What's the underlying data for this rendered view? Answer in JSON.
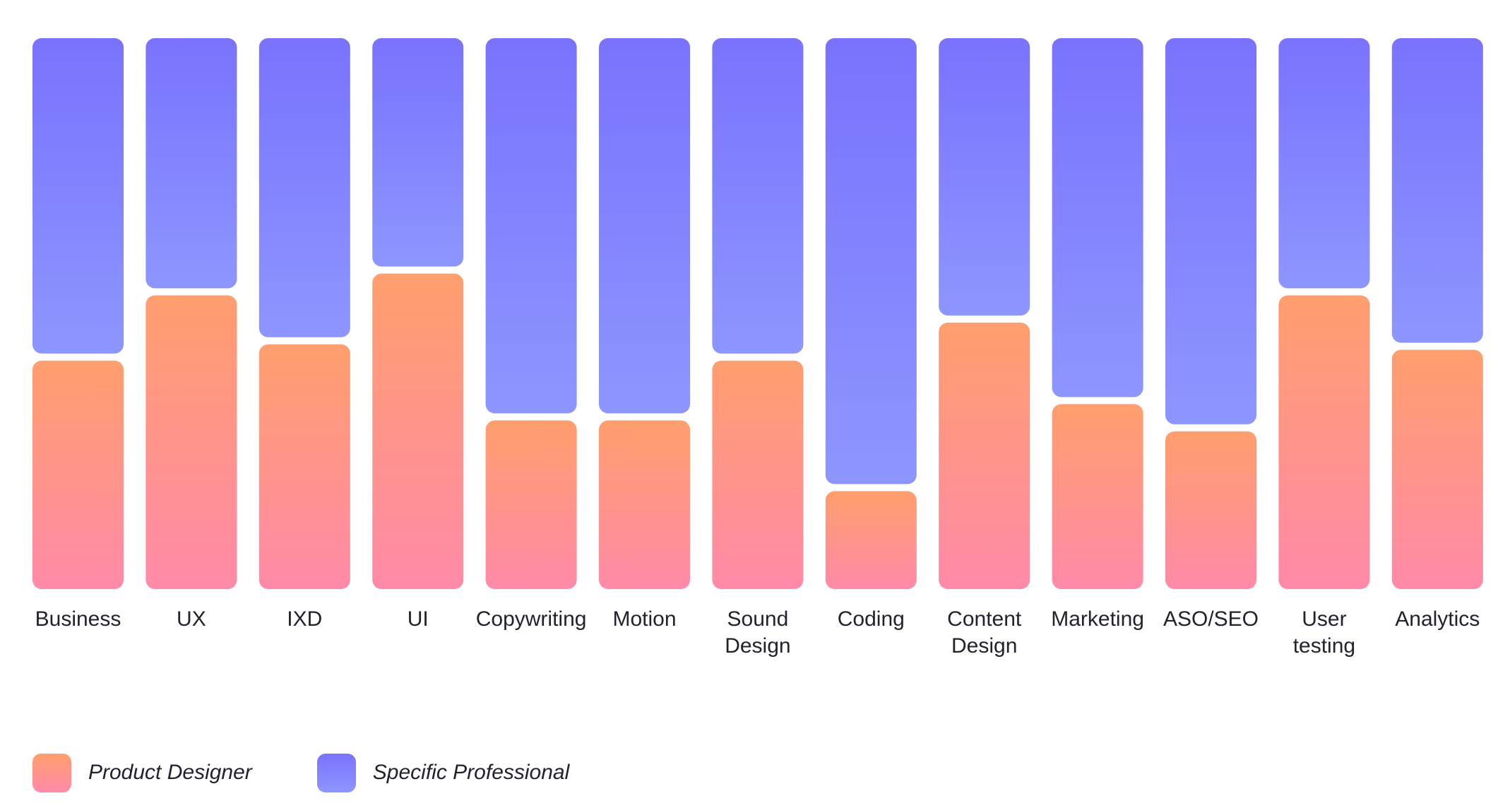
{
  "chart_data": {
    "type": "bar",
    "stacked": true,
    "normalized": true,
    "categories": [
      "Business",
      "UX",
      "IXD",
      "UI",
      "Copywriting",
      "Motion",
      "Sound Design",
      "Coding",
      "Content Design",
      "Marketing",
      "ASO/SEO",
      "User testing",
      "Analytics"
    ],
    "category_lines": [
      [
        "Business"
      ],
      [
        "UX"
      ],
      [
        "IXD"
      ],
      [
        "UI"
      ],
      [
        "Copywriting"
      ],
      [
        "Motion"
      ],
      [
        "Sound",
        "Design"
      ],
      [
        "Coding"
      ],
      [
        "Content",
        "Design"
      ],
      [
        "Marketing"
      ],
      [
        "ASO/SEO"
      ],
      [
        "User",
        "testing"
      ],
      [
        "Analytics"
      ]
    ],
    "series": [
      {
        "name": "Product Designer",
        "values": [
          42,
          54,
          45,
          58,
          31,
          31,
          42,
          18,
          49,
          34,
          29,
          54,
          44
        ]
      },
      {
        "name": "Specific Professional",
        "values": [
          58,
          46,
          55,
          42,
          69,
          69,
          58,
          82,
          51,
          66,
          71,
          46,
          56
        ]
      }
    ],
    "colors": {
      "product_designer_top": "#ff9e6d",
      "product_designer_bottom": "#ff8aa8",
      "specific_professional_top": "#7a72fd",
      "specific_professional_bottom": "#8d96ff"
    },
    "title": "",
    "xlabel": "",
    "ylabel": "",
    "ylim": [
      0,
      100
    ],
    "grid": false,
    "legend_position": "bottom-left"
  },
  "legend": {
    "items": [
      {
        "label": "Product Designer",
        "icon": "orange-pink-gradient-swatch"
      },
      {
        "label": "Specific Professional",
        "icon": "violet-gradient-swatch"
      }
    ]
  }
}
